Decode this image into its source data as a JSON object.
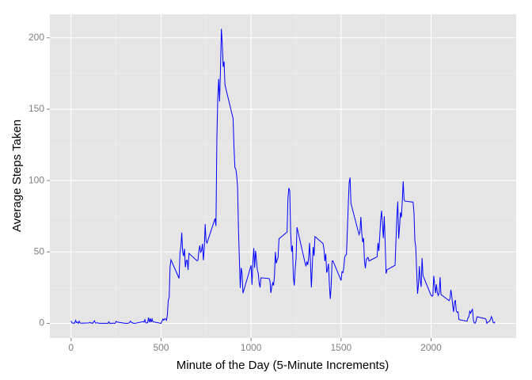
{
  "chart_data": {
    "type": "line",
    "x_label": "Minute of the Day (5-Minute Increments)",
    "y_label": "Average Steps Taken",
    "x": [
      0,
      5,
      10,
      15,
      20,
      25,
      30,
      35,
      40,
      45,
      50,
      55,
      100,
      105,
      110,
      115,
      120,
      125,
      130,
      135,
      140,
      145,
      150,
      155,
      200,
      205,
      210,
      215,
      220,
      225,
      230,
      235,
      240,
      245,
      250,
      255,
      300,
      305,
      310,
      315,
      320,
      325,
      330,
      335,
      340,
      345,
      350,
      355,
      400,
      405,
      410,
      415,
      420,
      425,
      430,
      435,
      440,
      445,
      450,
      455,
      500,
      505,
      510,
      515,
      520,
      525,
      530,
      535,
      540,
      545,
      550,
      555,
      600,
      605,
      610,
      615,
      620,
      625,
      630,
      635,
      640,
      645,
      650,
      655,
      700,
      705,
      710,
      715,
      720,
      725,
      730,
      735,
      740,
      745,
      750,
      755,
      800,
      805,
      810,
      815,
      820,
      825,
      830,
      835,
      840,
      845,
      850,
      855,
      900,
      905,
      910,
      915,
      920,
      925,
      930,
      935,
      940,
      945,
      950,
      955,
      1000,
      1005,
      1010,
      1015,
      1020,
      1025,
      1030,
      1035,
      1040,
      1045,
      1050,
      1055,
      1100,
      1105,
      1110,
      1115,
      1120,
      1125,
      1130,
      1135,
      1140,
      1145,
      1150,
      1155,
      1200,
      1205,
      1210,
      1215,
      1220,
      1225,
      1230,
      1235,
      1240,
      1245,
      1250,
      1255,
      1300,
      1305,
      1310,
      1315,
      1320,
      1325,
      1330,
      1335,
      1340,
      1345,
      1350,
      1355,
      1400,
      1405,
      1410,
      1415,
      1420,
      1425,
      1430,
      1435,
      1440,
      1445,
      1450,
      1455,
      1500,
      1505,
      1510,
      1515,
      1520,
      1525,
      1530,
      1535,
      1540,
      1545,
      1550,
      1555,
      1600,
      1605,
      1610,
      1615,
      1620,
      1625,
      1630,
      1635,
      1640,
      1645,
      1650,
      1655,
      1700,
      1705,
      1710,
      1715,
      1720,
      1725,
      1730,
      1735,
      1740,
      1745,
      1750,
      1755,
      1800,
      1805,
      1810,
      1815,
      1820,
      1825,
      1830,
      1835,
      1840,
      1845,
      1850,
      1855,
      1900,
      1905,
      1910,
      1915,
      1920,
      1925,
      1930,
      1935,
      1940,
      1945,
      1950,
      1955,
      2000,
      2005,
      2010,
      2015,
      2020,
      2025,
      2030,
      2035,
      2040,
      2045,
      2050,
      2055,
      2100,
      2105,
      2110,
      2115,
      2120,
      2125,
      2130,
      2135,
      2140,
      2145,
      2150,
      2155,
      2200,
      2205,
      2210,
      2215,
      2220,
      2225,
      2230,
      2235,
      2240,
      2245,
      2250,
      2255,
      2300,
      2305,
      2310,
      2315,
      2320,
      2325,
      2330,
      2335,
      2340,
      2345,
      2350,
      2355
    ],
    "series": [
      {
        "color": "#0000ff",
        "values": [
          1.7,
          0.3,
          0.1,
          0.2,
          0.1,
          2.1,
          0.5,
          0.9,
          0,
          1.5,
          0.3,
          0.1,
          0.3,
          0.7,
          0.2,
          0.3,
          0,
          1.1,
          1.8,
          0.2,
          0.2,
          0.4,
          0.3,
          0,
          0,
          0,
          1.1,
          0,
          0,
          0.1,
          0,
          0.2,
          0,
          0,
          1.5,
          0.9,
          0,
          0,
          0,
          0,
          0.2,
          0.6,
          1.6,
          0.6,
          0.5,
          0.1,
          0,
          0,
          1.2,
          0.9,
          2.6,
          0.3,
          0.3,
          0.4,
          4.1,
          0.7,
          3.5,
          0.8,
          3.1,
          1.1,
          0,
          1.5,
          3,
          2.2,
          3.3,
          3,
          2.1,
          6,
          16,
          18.3,
          39.5,
          44.5,
          31.5,
          49.3,
          53.8,
          63.5,
          50,
          47.1,
          52.2,
          39.3,
          44,
          44.2,
          37.4,
          49,
          43.8,
          44.4,
          50.5,
          54.5,
          49.9,
          51,
          55.7,
          44.3,
          52.3,
          69.5,
          57.8,
          56.2,
          73.4,
          68.2,
          129.4,
          157.5,
          171.2,
          155.4,
          177.3,
          206.2,
          195.9,
          179.6,
          183.4,
          167,
          143.5,
          124,
          109.1,
          108.1,
          103.7,
          95.9,
          66.2,
          45.2,
          24.8,
          38.8,
          35,
          21.1,
          40.6,
          27,
          42.4,
          52.7,
          38.9,
          50.8,
          44.3,
          37.4,
          34.7,
          28.3,
          25.1,
          31.9,
          31.4,
          29.7,
          21.3,
          25.5,
          28.4,
          26.5,
          33.4,
          50,
          42,
          44.6,
          46,
          59.2,
          63.9,
          87.7,
          94.8,
          92.8,
          63.4,
          50.2,
          54.5,
          32.4,
          26.5,
          37.7,
          45,
          67.3,
          42.3,
          39.9,
          43.3,
          41,
          46.2,
          56.4,
          42.8,
          25.1,
          39.9,
          53.5,
          47.3,
          60.8,
          55.8,
          52,
          43.6,
          48.7,
          35.5,
          37.5,
          41.8,
          27.5,
          17.1,
          26.1,
          43.6,
          43.8,
          30,
          36.1,
          35.5,
          38.8,
          46,
          47.8,
          48.1,
          65.3,
          82.9,
          98.7,
          102.1,
          84,
          62.1,
          64.1,
          74.5,
          63.2,
          56.9,
          59.8,
          43.9,
          38.6,
          44.7,
          45.5,
          46.2,
          43.7,
          46.6,
          56.3,
          50.7,
          61.2,
          72.7,
          78.9,
          68.9,
          59.7,
          75.1,
          56.5,
          34.8,
          37.5,
          40.7,
          58,
          74.7,
          85.3,
          59.3,
          67.8,
          77.7,
          74.2,
          85.3,
          99.5,
          86.6,
          85.6,
          84.9,
          77.8,
          58,
          53.4,
          36.3,
          20.7,
          27.4,
          40,
          30.2,
          25.5,
          45.7,
          33.5,
          19.6,
          19,
          19.3,
          33.3,
          26.8,
          21.2,
          27.3,
          21.3,
          19.5,
          21.3,
          32.3,
          20.2,
          15.9,
          17.2,
          23.5,
          19.2,
          12.5,
          8,
          14.7,
          16.3,
          8.7,
          7.8,
          8.1,
          2.6,
          1.5,
          3.7,
          4.8,
          8.5,
          7.1,
          8.7,
          9.8,
          2.2,
          0.3,
          0.1,
          1.6,
          4.6,
          3.3,
          2.8,
          0,
          0.8,
          1,
          1.6,
          2.6,
          4.7,
          3.3,
          0.6,
          0.2,
          1.1
        ]
      }
    ],
    "xlim": [
      -117.75,
      2472.75
    ],
    "xticks": [
      0,
      500,
      1000,
      1500,
      2000
    ],
    "ylim": [
      -10.3,
      216.5
    ],
    "yticks": [
      0,
      50,
      100,
      150,
      200
    ],
    "grid": true
  }
}
